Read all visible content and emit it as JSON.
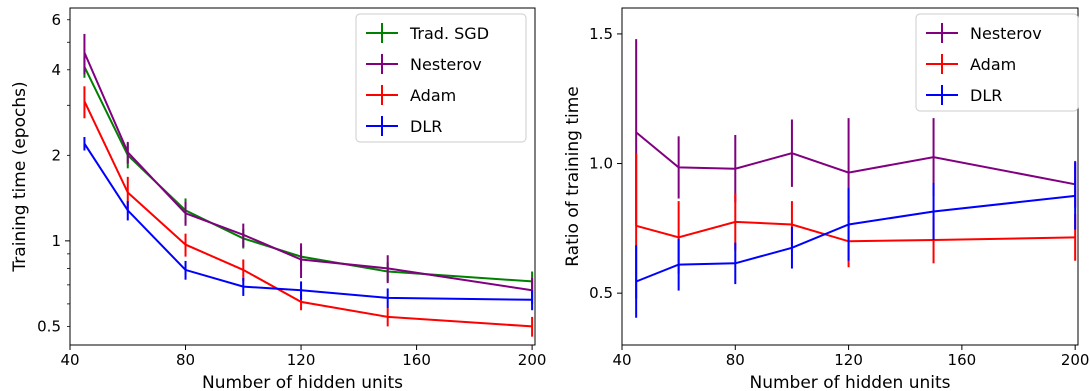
{
  "chart_data": [
    {
      "type": "line",
      "xlabel": "Number of hidden units",
      "ylabel": "Training time (epochs)",
      "xlim": [
        40,
        201
      ],
      "ylim": [
        0.43,
        6.6
      ],
      "yscale": "log",
      "xticks": [
        40,
        80,
        120,
        160,
        200
      ],
      "yticks_major": [
        1
      ],
      "yticks_minor": [
        0.5,
        2,
        4,
        6
      ],
      "legend_position": "top-right",
      "series": [
        {
          "name": "Trad. SGD",
          "color": "#008000",
          "x": [
            45,
            60,
            80,
            100,
            120,
            150,
            200
          ],
          "y": [
            4.1,
            2.0,
            1.28,
            1.02,
            0.88,
            0.78,
            0.72
          ],
          "err": [
            0.35,
            0.2,
            0.13,
            0.08,
            0.07,
            0.06,
            0.06
          ]
        },
        {
          "name": "Nesterov",
          "color": "#800080",
          "x": [
            45,
            60,
            80,
            100,
            120,
            150,
            200
          ],
          "y": [
            4.6,
            2.05,
            1.25,
            1.05,
            0.86,
            0.8,
            0.67
          ],
          "err": [
            0.75,
            0.18,
            0.12,
            0.1,
            0.12,
            0.09,
            0.07
          ]
        },
        {
          "name": "Adam",
          "color": "#ff0000",
          "x": [
            45,
            60,
            80,
            100,
            120,
            150,
            200
          ],
          "y": [
            3.1,
            1.48,
            0.97,
            0.79,
            0.61,
            0.54,
            0.5
          ],
          "err": [
            0.4,
            0.2,
            0.09,
            0.07,
            0.04,
            0.04,
            0.04
          ]
        },
        {
          "name": "DLR",
          "color": "#0000ff",
          "x": [
            45,
            60,
            80,
            100,
            120,
            150,
            200
          ],
          "y": [
            2.2,
            1.28,
            0.79,
            0.69,
            0.67,
            0.63,
            0.62
          ],
          "err": [
            0.12,
            0.1,
            0.06,
            0.05,
            0.05,
            0.05,
            0.05
          ]
        }
      ]
    },
    {
      "type": "line",
      "xlabel": "Number of hidden units",
      "ylabel": "Ratio of training time",
      "xlim": [
        40,
        201
      ],
      "ylim": [
        0.3,
        1.6
      ],
      "yscale": "linear",
      "xticks": [
        40,
        80,
        120,
        160,
        200
      ],
      "yticks": [
        0.5,
        1.0,
        1.5
      ],
      "legend_position": "top-right",
      "series": [
        {
          "name": "Nesterov",
          "color": "#800080",
          "x": [
            45,
            60,
            80,
            100,
            120,
            150,
            200
          ],
          "y": [
            1.12,
            0.985,
            0.98,
            1.04,
            0.965,
            1.025,
            0.92
          ],
          "err": [
            0.36,
            0.12,
            0.13,
            0.13,
            0.21,
            0.15,
            0.09
          ]
        },
        {
          "name": "Adam",
          "color": "#ff0000",
          "x": [
            45,
            60,
            80,
            100,
            120,
            150,
            200
          ],
          "y": [
            0.76,
            0.715,
            0.775,
            0.765,
            0.7,
            0.705,
            0.715
          ],
          "err": [
            0.28,
            0.14,
            0.11,
            0.09,
            0.1,
            0.09,
            0.09
          ]
        },
        {
          "name": "DLR",
          "color": "#0000ff",
          "x": [
            45,
            60,
            80,
            100,
            120,
            150,
            200
          ],
          "y": [
            0.545,
            0.61,
            0.615,
            0.675,
            0.765,
            0.815,
            0.875
          ],
          "err": [
            0.14,
            0.1,
            0.08,
            0.08,
            0.14,
            0.11,
            0.13
          ]
        }
      ]
    }
  ]
}
